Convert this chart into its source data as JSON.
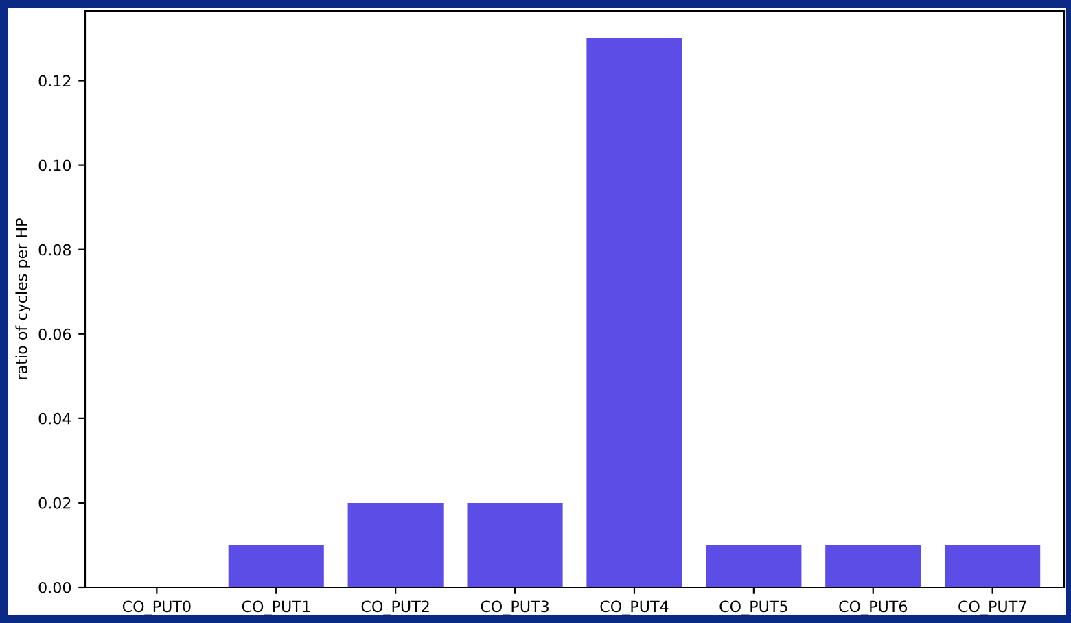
{
  "chart_data": {
    "type": "bar",
    "ylabel": "ratio of cycles per HP",
    "categories": [
      "CO_PUT0",
      "CO_PUT1",
      "CO_PUT2",
      "CO_PUT3",
      "CO_PUT4",
      "CO_PUT5",
      "CO_PUT6",
      "CO_PUT7"
    ],
    "values": [
      0,
      0.01,
      0.02,
      0.02,
      0.13,
      0.01,
      0.01,
      0.01
    ],
    "color": "#5b4de6",
    "ylim": [
      0,
      0.1365
    ],
    "yticks": [
      {
        "value": 0,
        "label": "0.00"
      },
      {
        "value": 0.02,
        "label": "0.02"
      },
      {
        "value": 0.04,
        "label": "0.04"
      },
      {
        "value": 0.06,
        "label": "0.06"
      },
      {
        "value": 0.08,
        "label": "0.08"
      },
      {
        "value": 0.1,
        "label": "0.10"
      },
      {
        "value": 0.12,
        "label": "0.12"
      }
    ],
    "grid": false
  }
}
